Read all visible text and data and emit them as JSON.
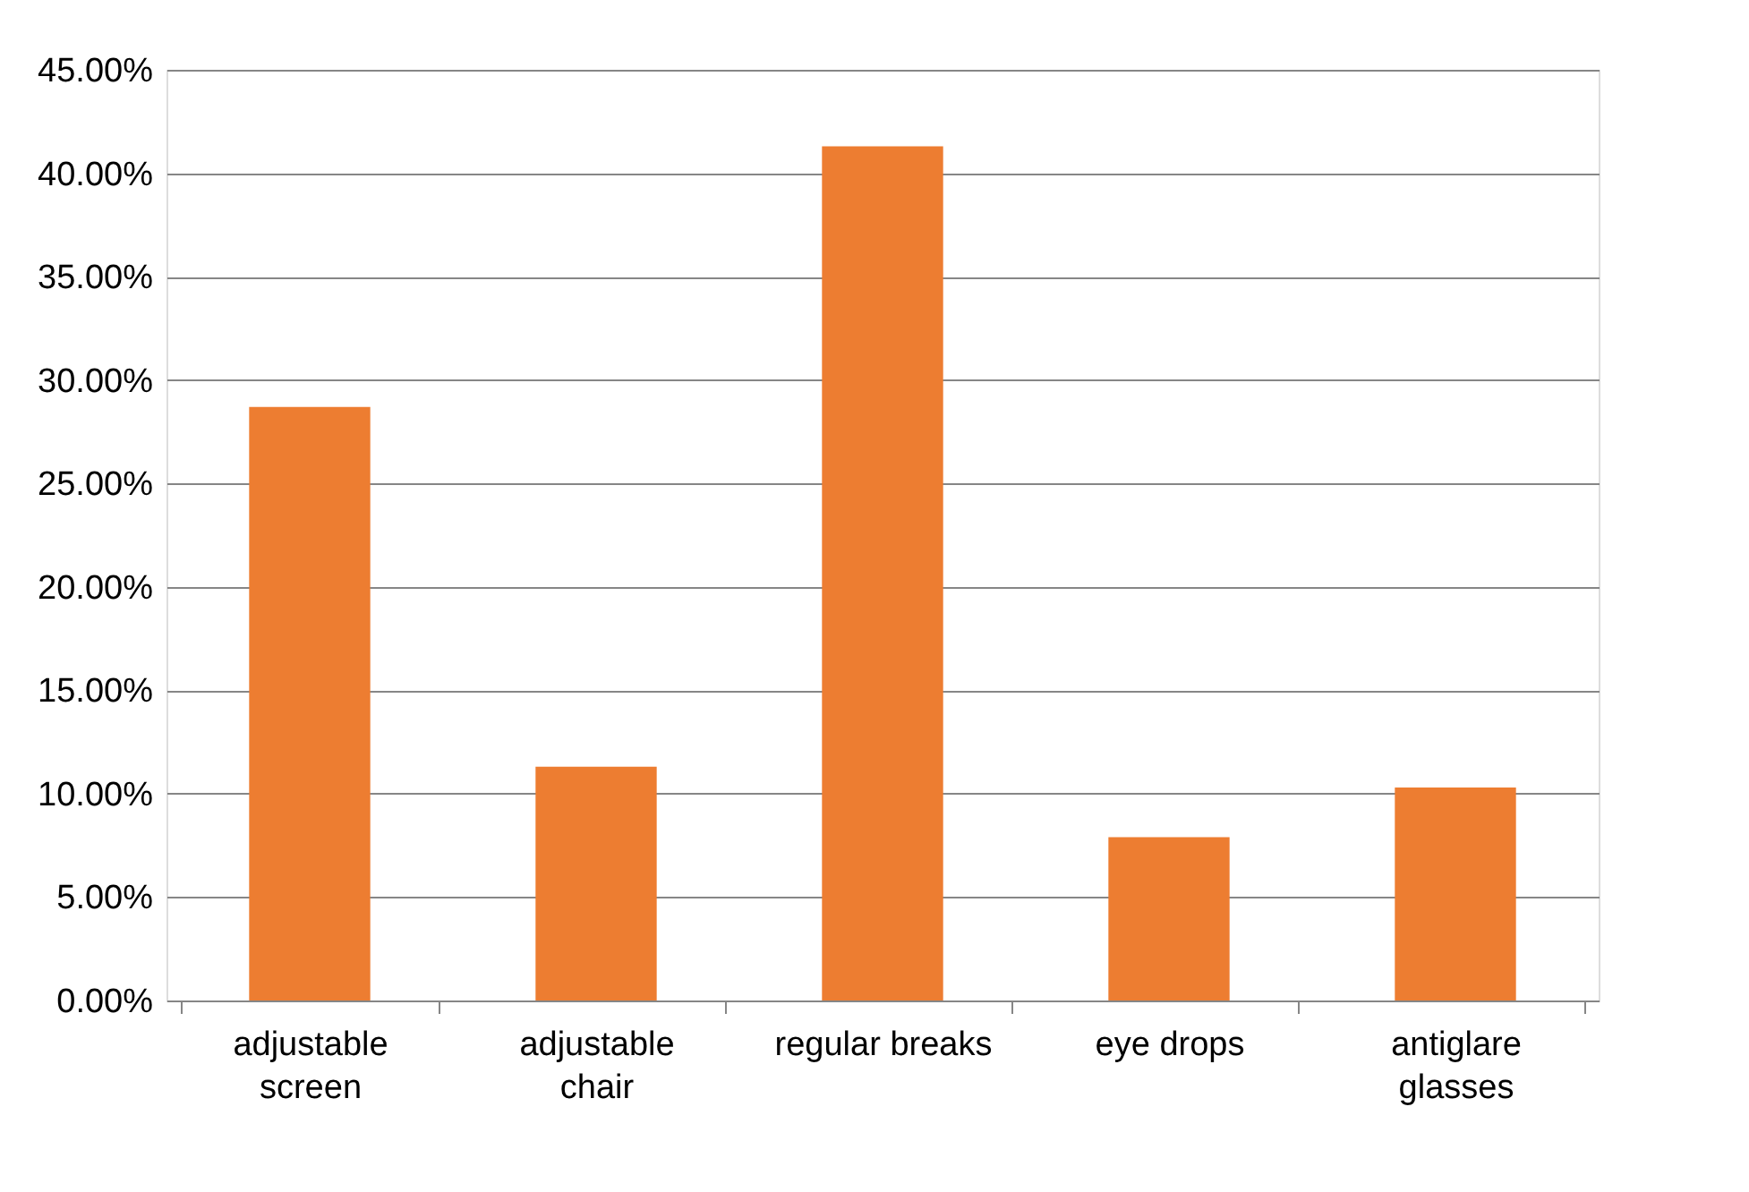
{
  "chart_data": {
    "type": "bar",
    "categories": [
      "adjustable screen",
      "adjustable chair",
      "regular breaks",
      "eye drops",
      "antiglare glasses"
    ],
    "values": [
      28.7,
      11.3,
      41.3,
      7.9,
      10.3
    ],
    "color": "#ed7d31",
    "ylim": [
      0,
      45
    ],
    "yticks": [
      {
        "value": 0,
        "label": "0.00%"
      },
      {
        "value": 5,
        "label": "5.00%"
      },
      {
        "value": 10,
        "label": "10.00%"
      },
      {
        "value": 15,
        "label": "15.00%"
      },
      {
        "value": 20,
        "label": "20.00%"
      },
      {
        "value": 25,
        "label": "25.00%"
      },
      {
        "value": 30,
        "label": "30.00%"
      },
      {
        "value": 35,
        "label": "35.00%"
      },
      {
        "value": 40,
        "label": "40.00%"
      },
      {
        "value": 45,
        "label": "45.00%"
      }
    ],
    "grid": "y"
  }
}
